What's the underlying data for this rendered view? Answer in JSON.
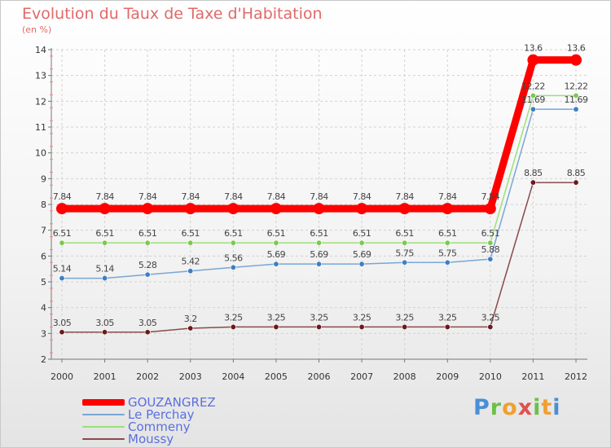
{
  "title": "Evolution du Taux de Taxe d'Habitation",
  "unit": "(en %)",
  "brand": "Proxiti",
  "chart_data": {
    "type": "line",
    "title": "Evolution du Taux de Taxe d'Habitation",
    "ylabel": "(en %)",
    "xlabel": "",
    "x": [
      "2000",
      "2001",
      "2002",
      "2003",
      "2004",
      "2005",
      "2006",
      "2007",
      "2008",
      "2009",
      "2010",
      "2011",
      "2012"
    ],
    "ylim": [
      2,
      14
    ],
    "yticks": [
      "2",
      "3",
      "4",
      "5",
      "6",
      "7",
      "8",
      "9",
      "10",
      "11",
      "12",
      "13",
      "14"
    ],
    "grid": true,
    "series": [
      {
        "name": "GOUZANGREZ",
        "color": "#ff0000",
        "dot": "#ff0000",
        "values": [
          7.84,
          7.84,
          7.84,
          7.84,
          7.84,
          7.84,
          7.84,
          7.84,
          7.84,
          7.84,
          7.84,
          13.6,
          13.6
        ],
        "labels": [
          "7.84",
          "7.84",
          "7.84",
          "7.84",
          "7.84",
          "7.84",
          "7.84",
          "7.84",
          "7.84",
          "7.84",
          "7.84",
          "13.6",
          "13.6"
        ]
      },
      {
        "name": "Le Perchay",
        "color": "#7aa6d6",
        "dot": "#3d7fc4",
        "values": [
          5.14,
          5.14,
          5.28,
          5.42,
          5.56,
          5.69,
          5.69,
          5.69,
          5.75,
          5.75,
          5.88,
          11.69,
          11.69
        ],
        "labels": [
          "5.14",
          "5.14",
          "5.28",
          "5.42",
          "5.56",
          "5.69",
          "5.69",
          "5.69",
          "5.75",
          "5.75",
          "5.88",
          "11.69",
          "11.69"
        ]
      },
      {
        "name": "Commeny",
        "color": "#9be07a",
        "dot": "#7cc850",
        "values": [
          6.51,
          6.51,
          6.51,
          6.51,
          6.51,
          6.51,
          6.51,
          6.51,
          6.51,
          6.51,
          6.51,
          12.22,
          12.22
        ],
        "labels": [
          "6.51",
          "6.51",
          "6.51",
          "6.51",
          "6.51",
          "6.51",
          "6.51",
          "6.51",
          "6.51",
          "6.51",
          "6.51",
          "12.22",
          "12.22"
        ]
      },
      {
        "name": "Moussy",
        "color": "#8a4a4a",
        "dot": "#6a1a1a",
        "values": [
          3.05,
          3.05,
          3.05,
          3.2,
          3.25,
          3.25,
          3.25,
          3.25,
          3.25,
          3.25,
          3.25,
          8.85,
          8.85
        ],
        "labels": [
          "3.05",
          "3.05",
          "3.05",
          "3.2",
          "3.25",
          "3.25",
          "3.25",
          "3.25",
          "3.25",
          "3.25",
          "3.25",
          "8.85",
          "8.85"
        ]
      }
    ]
  }
}
